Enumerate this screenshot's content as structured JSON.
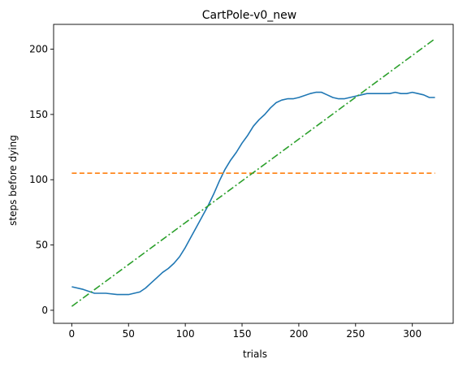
{
  "chart_data": {
    "type": "line",
    "title": "CartPole-v0_new",
    "xlabel": "trials",
    "ylabel": "steps before dying",
    "xlim": [
      -16,
      336
    ],
    "ylim": [
      -10,
      219
    ],
    "xticks": [
      0,
      50,
      100,
      150,
      200,
      250,
      300
    ],
    "yticks": [
      0,
      50,
      100,
      150,
      200
    ],
    "grid": false,
    "legend": "none",
    "series": [
      {
        "color": "#1f77b4",
        "style": "solid",
        "x": [
          0,
          10,
          20,
          30,
          40,
          50,
          55,
          60,
          65,
          70,
          75,
          80,
          85,
          90,
          95,
          100,
          105,
          110,
          115,
          120,
          125,
          130,
          135,
          140,
          145,
          150,
          155,
          160,
          165,
          170,
          175,
          180,
          185,
          190,
          195,
          200,
          210,
          215,
          220,
          225,
          230,
          235,
          240,
          245,
          250,
          255,
          260,
          270,
          280,
          285,
          290,
          295,
          300,
          305,
          310,
          315,
          320
        ],
        "values": [
          18,
          16,
          13,
          13,
          12,
          12,
          13,
          14,
          17,
          21,
          25,
          29,
          32,
          36,
          41,
          48,
          56,
          64,
          72,
          80,
          89,
          99,
          108,
          115,
          121,
          128,
          134,
          141,
          146,
          150,
          155,
          159,
          161,
          162,
          162,
          163,
          166,
          167,
          167,
          165,
          163,
          162,
          162,
          163,
          164,
          165,
          166,
          166,
          166,
          167,
          166,
          166,
          167,
          166,
          165,
          163,
          163
        ]
      },
      {
        "color": "#ff7f0e",
        "style": "dashed",
        "x": [
          0,
          320
        ],
        "values": [
          105,
          105
        ]
      },
      {
        "color": "#2ca02c",
        "style": "dashdot",
        "x": [
          0,
          320
        ],
        "values": [
          3,
          208
        ]
      }
    ]
  }
}
